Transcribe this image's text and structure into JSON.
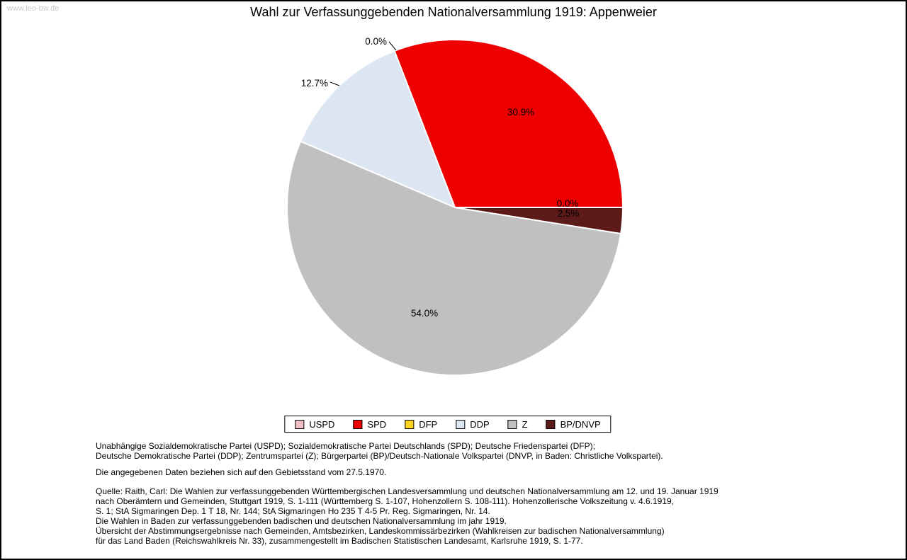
{
  "watermark": "www.leo-bw.de",
  "title": "Wahl zur Verfassunggebenden Nationalversammlung 1919: Appenweier",
  "chart_data": {
    "type": "pie",
    "title": "Wahl zur Verfassunggebenden Nationalversammlung 1919: Appenweier",
    "direction": "counterclockwise",
    "start_angle_deg": 0,
    "legend_position": "bottom",
    "edge_color": "#ffffff",
    "slices": [
      {
        "label": "USPD",
        "value": 0.0,
        "pct_label": "0.0%",
        "color": "#f3bfc6"
      },
      {
        "label": "SPD",
        "value": 30.9,
        "pct_label": "30.9%",
        "color": "#ee0000"
      },
      {
        "label": "DFP",
        "value": 0.0,
        "pct_label": "0.0%",
        "color": "#ffd320"
      },
      {
        "label": "DDP",
        "value": 12.7,
        "pct_label": "12.7%",
        "color": "#dce6f2"
      },
      {
        "label": "Z",
        "value": 54.0,
        "pct_label": "54.0%",
        "color": "#c0c0c0"
      },
      {
        "label": "BP/DNVP",
        "value": 2.5,
        "pct_label": "2.5%",
        "color": "#5c1a18"
      }
    ]
  },
  "footer": {
    "party_lines": [
      "Unabhängige Sozialdemokratische Partei (USPD); Sozialdemokratische Partei Deutschlands (SPD); Deutsche Friedenspartei (DFP);",
      "Deutsche Demokratische Partei (DDP); Zentrumspartei (Z); Bürgerpartei (BP)/Deutsch-Nationale Volkspartei (DNVP, in Baden: Christliche Volkspartei)."
    ],
    "note": "Die angegebenen Daten beziehen sich auf den Gebietsstand vom 27.5.1970.",
    "source_lines": [
      "Quelle: Raith, Carl: Die Wahlen zur verfassunggebenden Württembergischen Landesversammlung und deutschen Nationalversammlung am 12. und 19. Januar 1919",
      "nach Oberämtern und Gemeinden, Stuttgart 1919, S. 1-111 (Württemberg S. 1-107, Hohenzollern S. 108-111). Hohenzollerische Volkszeitung v. 4.6.1919,",
      "S. 1; StA Sigmaringen Dep. 1 T 18, Nr. 144; StA Sigmaringen Ho 235 T 4-5 Pr. Reg. Sigmaringen, Nr. 14.",
      "Die Wahlen in Baden zur verfassunggebenden badischen und deutschen Nationalversammlung im jahr 1919.",
      "Übersicht der Abstimmungsergebnisse nach Gemeinden, Amtsbezirken, Landeskommissärbezirken (Wahlkreisen zur badischen Nationalversammlung)",
      "für das Land Baden (Reichswahlkreis Nr. 33), zusammengestellt im Badischen Statistischen Landesamt, Karlsruhe 1919, S. 1-77."
    ]
  }
}
